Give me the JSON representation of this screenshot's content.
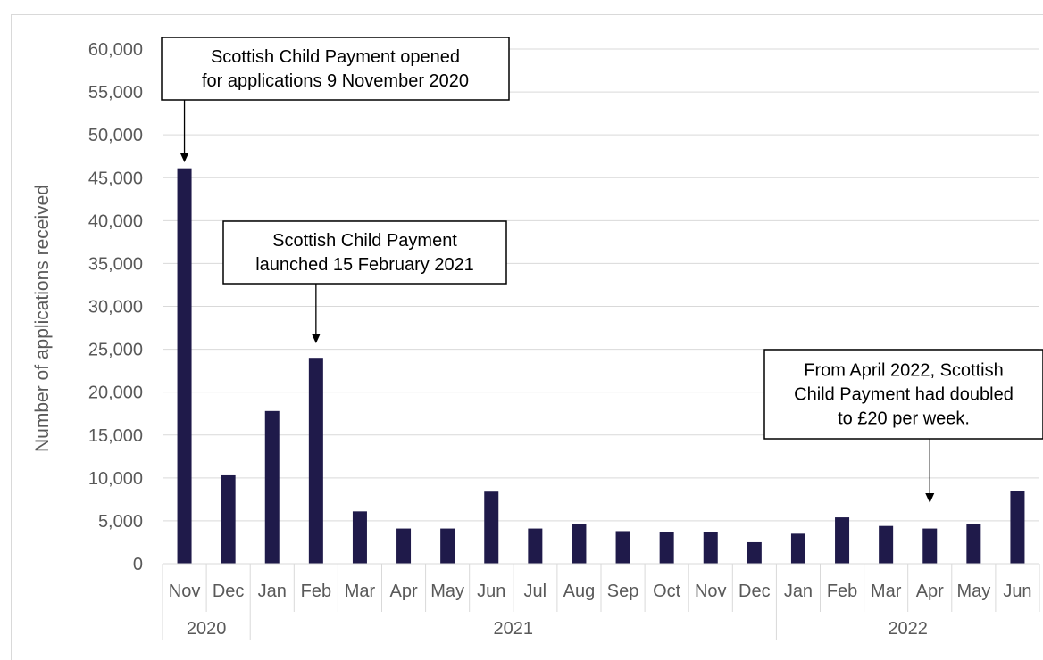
{
  "chart_data": {
    "type": "bar",
    "ylabel": "Number of applications received",
    "xlabel": "",
    "title": "",
    "ylim": [
      0,
      60000
    ],
    "y_ticks": [
      "0",
      "5,000",
      "10,000",
      "15,000",
      "20,000",
      "25,000",
      "30,000",
      "35,000",
      "40,000",
      "45,000",
      "50,000",
      "55,000",
      "60,000"
    ],
    "categories": [
      "Nov",
      "Dec",
      "Jan",
      "Feb",
      "Mar",
      "Apr",
      "May",
      "Jun",
      "Jul",
      "Aug",
      "Sep",
      "Oct",
      "Nov",
      "Dec",
      "Jan",
      "Feb",
      "Mar",
      "Apr",
      "May",
      "Jun"
    ],
    "year_groups": [
      {
        "label": "2020",
        "count": 2
      },
      {
        "label": "2021",
        "count": 12
      },
      {
        "label": "2022",
        "count": 6
      }
    ],
    "values": [
      46100,
      10300,
      17800,
      24000,
      6100,
      4100,
      4100,
      8400,
      4100,
      4600,
      3800,
      3700,
      3700,
      2500,
      3500,
      5400,
      4400,
      4100,
      4600,
      8500
    ],
    "bar_color": "#1f1a4a",
    "grid": true,
    "annotations": [
      {
        "lines": [
          "Scottish Child Payment opened",
          "for applications 9 November 2020"
        ],
        "target_index": 0
      },
      {
        "lines": [
          "Scottish Child Payment",
          "launched 15 February 2021"
        ],
        "target_index": 3
      },
      {
        "lines": [
          "From April 2022, Scottish",
          "Child Payment had doubled",
          "to £20 per week."
        ],
        "target_index": 17
      }
    ]
  }
}
